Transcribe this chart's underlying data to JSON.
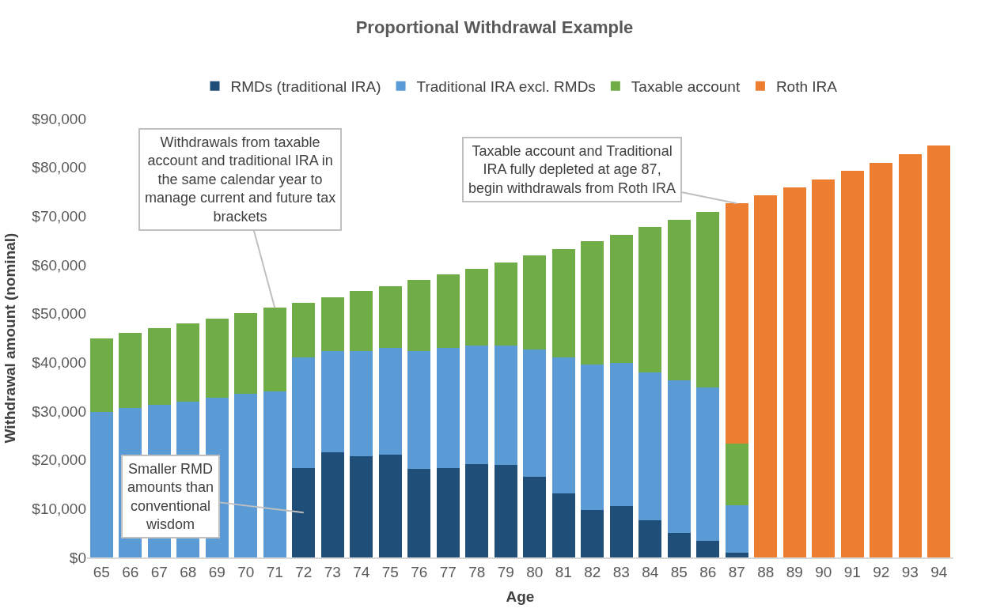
{
  "chart_data": {
    "type": "bar",
    "stacked": true,
    "title": "Proportional Withdrawal Example",
    "xlabel": "Age",
    "ylabel": "Withdrawal amount (nominal)",
    "categories": [
      "65",
      "66",
      "67",
      "68",
      "69",
      "70",
      "71",
      "72",
      "73",
      "74",
      "75",
      "76",
      "77",
      "78",
      "79",
      "80",
      "81",
      "82",
      "83",
      "84",
      "85",
      "86",
      "87",
      "88",
      "89",
      "90",
      "91",
      "92",
      "93",
      "94"
    ],
    "series": [
      {
        "name": "RMDs (traditional IRA)",
        "color": "#1f4e79",
        "values": [
          null,
          null,
          null,
          null,
          null,
          null,
          null,
          18400,
          21600,
          20800,
          21100,
          18100,
          18300,
          19100,
          19000,
          16500,
          13100,
          9800,
          10600,
          7700,
          5000,
          3400,
          900,
          null,
          null,
          null,
          null,
          null,
          null,
          null
        ]
      },
      {
        "name": "Traditional IRA excl. RMDs",
        "color": "#5b9bd5",
        "values": [
          29900,
          30600,
          31300,
          32000,
          32700,
          33500,
          34000,
          22600,
          20800,
          21600,
          21800,
          24300,
          24600,
          24400,
          24500,
          26100,
          27900,
          29700,
          29300,
          30300,
          31300,
          31500,
          9800,
          null,
          null,
          null,
          null,
          null,
          null,
          null
        ]
      },
      {
        "name": "Taxable account",
        "color": "#70ad47",
        "values": [
          15000,
          15400,
          15800,
          16000,
          16300,
          16600,
          17200,
          11200,
          10900,
          12200,
          12700,
          14500,
          15100,
          15700,
          17000,
          19300,
          22300,
          25300,
          26300,
          29800,
          32900,
          36000,
          12700,
          null,
          null,
          null,
          null,
          null,
          null,
          null
        ]
      },
      {
        "name": "Roth IRA",
        "color": "#ed7d31",
        "values": [
          null,
          null,
          null,
          null,
          null,
          null,
          null,
          null,
          null,
          null,
          null,
          null,
          null,
          null,
          null,
          null,
          null,
          null,
          null,
          null,
          null,
          null,
          49200,
          74300,
          75900,
          77500,
          79300,
          80900,
          82700,
          84500
        ]
      }
    ],
    "ylim": [
      0,
      90000
    ],
    "yticks": [
      {
        "value": 0,
        "label": "$0"
      },
      {
        "value": 10000,
        "label": "$10,000"
      },
      {
        "value": 20000,
        "label": "$20,000"
      },
      {
        "value": 30000,
        "label": "$30,000"
      },
      {
        "value": 40000,
        "label": "$40,000"
      },
      {
        "value": 50000,
        "label": "$50,000"
      },
      {
        "value": 60000,
        "label": "$60,000"
      },
      {
        "value": 70000,
        "label": "$70,000"
      },
      {
        "value": 80000,
        "label": "$80,000"
      },
      {
        "value": 90000,
        "label": "$90,000"
      }
    ],
    "legend": "top",
    "annotations": [
      {
        "text": "Withdrawals from taxable account and traditional IRA in the same calendar year to manage current and future tax brackets",
        "x": "71",
        "y": 51200
      },
      {
        "text": "Taxable account and Traditional IRA fully depleted at age 87, begin withdrawals from Roth IRA",
        "x": "87",
        "y": 72600
      },
      "Smaller RMD amounts than conventional wisdom"
    ]
  }
}
